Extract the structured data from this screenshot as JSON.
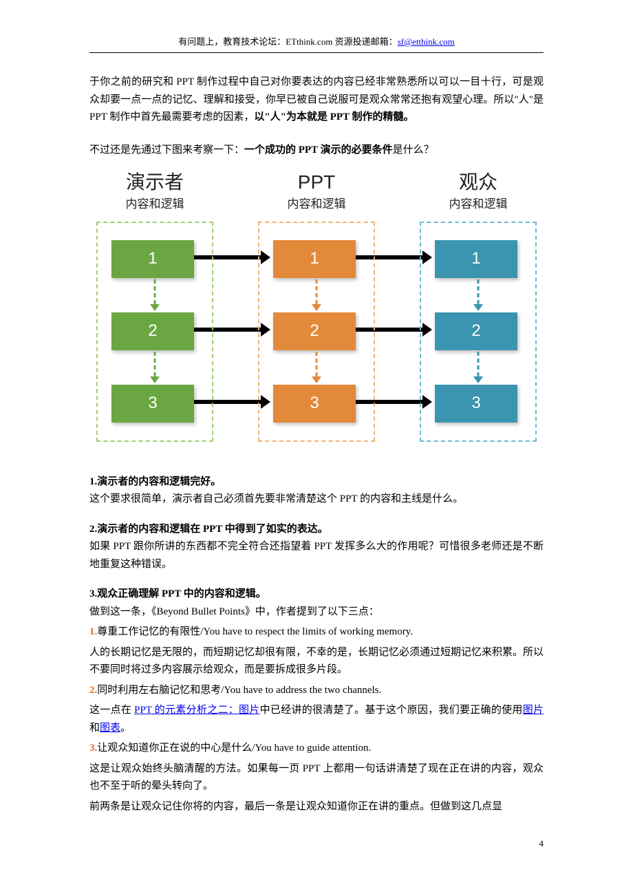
{
  "header": {
    "prefix": "有问题上，教育技术论坛：ETthink.com 资源投递邮箱：",
    "email": "sf@etthink.com"
  },
  "para1_a": "于你之前的研究和 PPT 制作过程中自己对你要表达的内容已经非常熟悉所以可以一目十行，可是观众却要一点一点的记忆、理解和接受，你早已被自己说服可是观众常常还抱有观望心理。所以\"人\"是 PPT 制作中首先最需要考虑的因素，",
  "para1_b": "以\"人\"为本就是 PPT 制作的精髓。",
  "para2_a": "不过还是先通过下图来考察一下：",
  "para2_b": "一个成功的 PPT 演示的必要条件",
  "para2_c": "是什么？",
  "diagram": {
    "columns": [
      {
        "title": "演示者",
        "sub": "内容和逻辑",
        "color": "#6aa743",
        "border": "#9fcf71"
      },
      {
        "title": "PPT",
        "sub": "内容和逻辑",
        "color": "#e3893a",
        "border": "#f2b26f"
      },
      {
        "title": "观众",
        "sub": "内容和逻辑",
        "color": "#3b94b0",
        "border": "#6bb9d0"
      }
    ],
    "rows": [
      "1",
      "2",
      "3"
    ]
  },
  "sec1_title": "1.演示者的内容和逻辑完好。",
  "sec1_body": "这个要求很简单，演示者自己必须首先要非常清楚这个 PPT 的内容和主线是什么。",
  "sec2_title": "2.演示者的内容和逻辑在 PPT 中得到了如实的表达。",
  "sec2_body": "如果 PPT 跟你所讲的东西都不完全符合还指望着 PPT 发挥多么大的作用呢？可惜很多老师还是不断地重复这种错误。",
  "sec3_title": "3.观众正确理解 PPT 中的内容和逻辑。",
  "sec3_intro": "做到这一条，《Beyond Bullet Points》中，作者提到了以下三点：",
  "pt1_num": "1.",
  "pt1_t": "尊重工作记忆的有限性/You have to respect the limits of working memory.",
  "pt1_b": "人的长期记忆是无限的，而短期记忆却很有限，不幸的是，长期记忆必须通过短期记忆来积累。所以不要同时将过多内容展示给观众，而是要拆成很多片段。",
  "pt2_num": "2.",
  "pt2_t": "同时利用左右脑记忆和思考/You have to address the two channels.",
  "pt2_b_a": "这一点在 ",
  "pt2_link1": "PPT 的元素分析之二：图片",
  "pt2_b_b": "中已经讲的很清楚了。基于这个原因，我们要正确的使用",
  "pt2_link2": "图片",
  "pt2_b_c": "和",
  "pt2_link3": "图表",
  "pt2_b_d": "。",
  "pt3_num": "3.",
  "pt3_t": "让观众知道你正在说的中心是什么/You have to guide attention.",
  "pt3_b": "这是让观众始终头脑清醒的方法。如果每一页 PPT 上都用一句话讲清楚了现在正在讲的内容，观众也不至于听的晕头转向了。",
  "closing": "前两条是让观众记住你将的内容，最后一条是让观众知道你正在讲的重点。但做到这几点显",
  "page_num": "4"
}
